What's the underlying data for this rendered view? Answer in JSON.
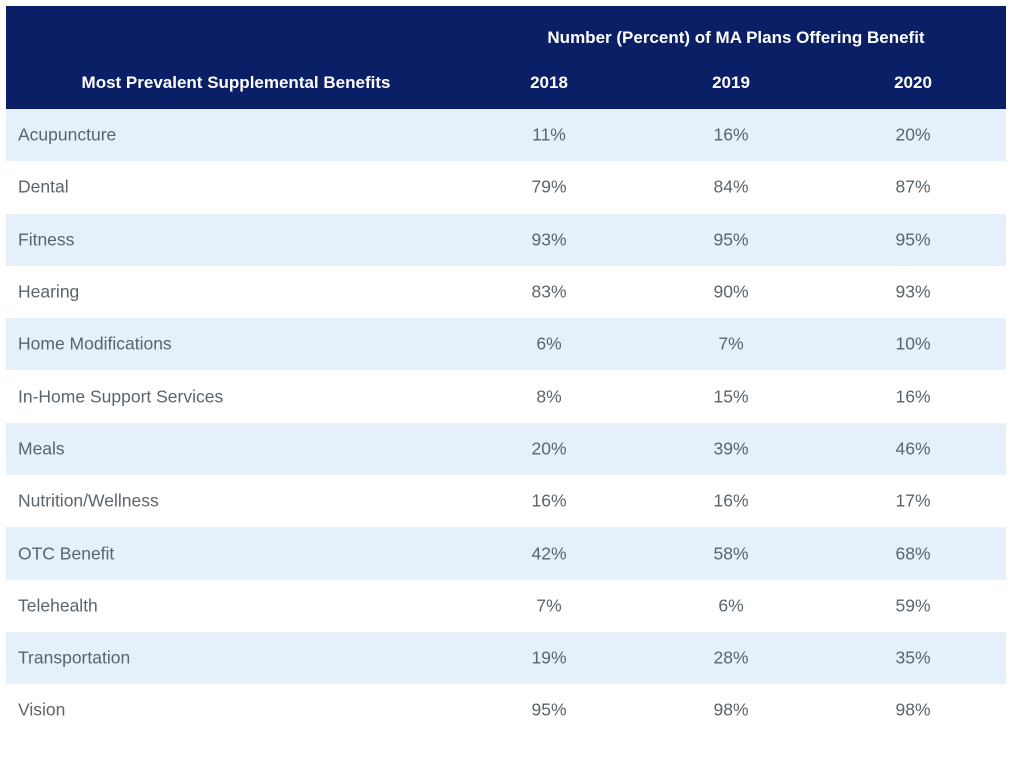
{
  "chart_data": {
    "type": "table",
    "title": "Number (Percent) of MA Plans Offering Benefit",
    "row_header": "Most Prevalent Supplemental Benefits",
    "columns": [
      "2018",
      "2019",
      "2020"
    ],
    "rows": [
      {
        "label": "Acupuncture",
        "values": [
          "11%",
          "16%",
          "20%"
        ]
      },
      {
        "label": "Dental",
        "values": [
          "79%",
          "84%",
          "87%"
        ]
      },
      {
        "label": "Fitness",
        "values": [
          "93%",
          "95%",
          "95%"
        ]
      },
      {
        "label": "Hearing",
        "values": [
          "83%",
          "90%",
          "93%"
        ]
      },
      {
        "label": "Home Modifications",
        "values": [
          "6%",
          "7%",
          "10%"
        ]
      },
      {
        "label": "In-Home Support Services",
        "values": [
          "8%",
          "15%",
          "16%"
        ]
      },
      {
        "label": "Meals",
        "values": [
          "20%",
          "39%",
          "46%"
        ]
      },
      {
        "label": "Nutrition/Wellness",
        "values": [
          "16%",
          "16%",
          "17%"
        ]
      },
      {
        "label": "OTC Benefit",
        "values": [
          "42%",
          "58%",
          "68%"
        ]
      },
      {
        "label": "Telehealth",
        "values": [
          "7%",
          "6%",
          "59%"
        ]
      },
      {
        "label": "Transportation",
        "values": [
          "19%",
          "28%",
          "35%"
        ]
      },
      {
        "label": "Vision",
        "values": [
          "95%",
          "98%",
          "98%"
        ]
      }
    ]
  },
  "colors": {
    "header_bg": "#0b1f66",
    "stripe_bg": "#e6f0fa",
    "body_text": "#5a646c"
  }
}
